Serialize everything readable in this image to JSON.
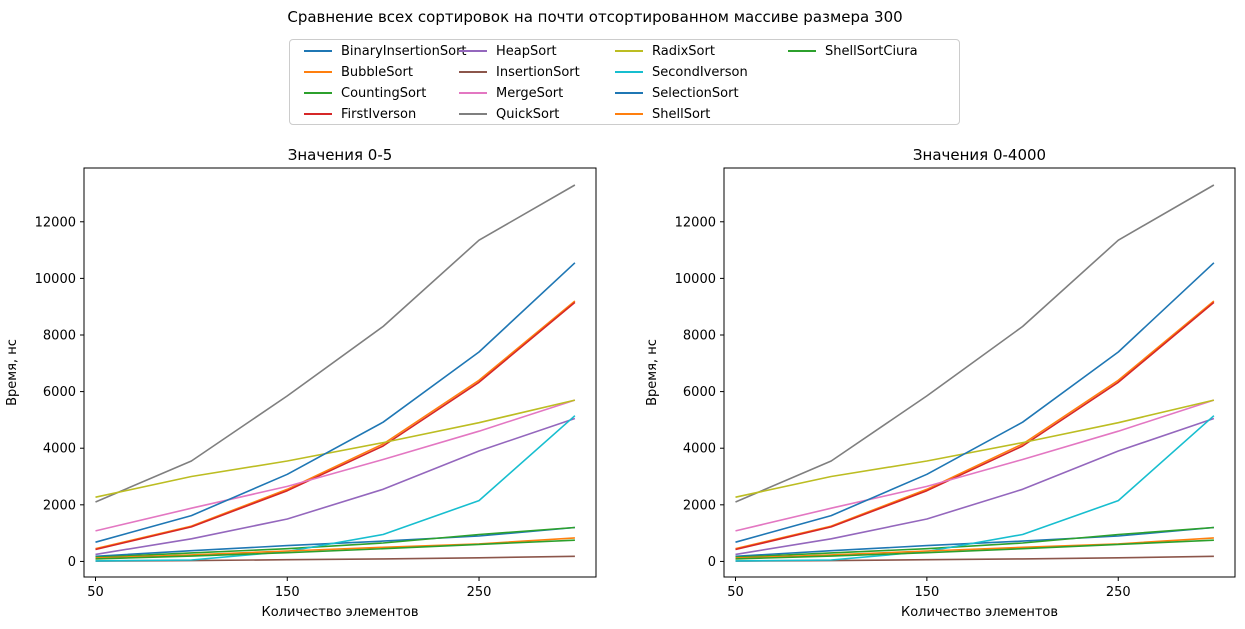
{
  "suptitle": "Сравнение всех сортировок на почти отсортированном массиве размера 300",
  "legend": [
    {
      "name": "BinaryInsertionSort",
      "color": "#1f77b4"
    },
    {
      "name": "BubbleSort",
      "color": "#ff7f0e"
    },
    {
      "name": "CountingSort",
      "color": "#2ca02c"
    },
    {
      "name": "FirstIverson",
      "color": "#d62728"
    },
    {
      "name": "HeapSort",
      "color": "#9467bd"
    },
    {
      "name": "InsertionSort",
      "color": "#8c564b"
    },
    {
      "name": "MergeSort",
      "color": "#e377c2"
    },
    {
      "name": "QuickSort",
      "color": "#7f7f7f"
    },
    {
      "name": "RadixSort",
      "color": "#bcbd22"
    },
    {
      "name": "SecondIverson",
      "color": "#17becf"
    },
    {
      "name": "SelectionSort",
      "color": "#1f77b4"
    },
    {
      "name": "ShellSort",
      "color": "#ff7f0e"
    },
    {
      "name": "ShellSortCiura",
      "color": "#2ca02c"
    }
  ],
  "chart_data": [
    {
      "type": "line",
      "title": "Значения 0-5",
      "xlabel": "Количество элементов",
      "ylabel": "Время, нс",
      "xlim": [
        44,
        311
      ],
      "ylim": [
        -550,
        13900
      ],
      "xticks": [
        50,
        150,
        250
      ],
      "yticks": [
        0,
        2000,
        4000,
        6000,
        8000,
        10000,
        12000
      ],
      "x": [
        50,
        100,
        150,
        200,
        250,
        300
      ],
      "series": [
        {
          "name": "BinaryInsertionSort",
          "color": "#1f77b4",
          "values": [
            180,
            380,
            560,
            720,
            900,
            1200
          ]
        },
        {
          "name": "BubbleSort",
          "color": "#ff7f0e",
          "values": [
            450,
            1250,
            2550,
            4150,
            6400,
            9200
          ]
        },
        {
          "name": "CountingSort",
          "color": "#2ca02c",
          "values": [
            150,
            300,
            450,
            650,
            950,
            1200
          ]
        },
        {
          "name": "FirstIverson",
          "color": "#d62728",
          "values": [
            420,
            1220,
            2500,
            4080,
            6330,
            9150
          ]
        },
        {
          "name": "HeapSort",
          "color": "#9467bd",
          "values": [
            250,
            800,
            1500,
            2550,
            3900,
            5050
          ]
        },
        {
          "name": "InsertionSort",
          "color": "#8c564b",
          "values": [
            10,
            30,
            60,
            90,
            130,
            180
          ]
        },
        {
          "name": "MergeSort",
          "color": "#e377c2",
          "values": [
            1080,
            1880,
            2650,
            3600,
            4600,
            5700
          ]
        },
        {
          "name": "QuickSort",
          "color": "#7f7f7f",
          "values": [
            2100,
            3550,
            5850,
            8300,
            11350,
            13300
          ]
        },
        {
          "name": "RadixSort",
          "color": "#bcbd22",
          "values": [
            2270,
            3000,
            3550,
            4200,
            4900,
            5700
          ]
        },
        {
          "name": "SecondIverson",
          "color": "#17becf",
          "values": [
            20,
            50,
            350,
            950,
            2150,
            5150
          ]
        },
        {
          "name": "SelectionSort",
          "color": "#1f77b4",
          "values": [
            680,
            1620,
            3080,
            4920,
            7400,
            10550
          ]
        },
        {
          "name": "ShellSort",
          "color": "#ff7f0e",
          "values": [
            120,
            230,
            370,
            500,
            620,
            830
          ]
        },
        {
          "name": "ShellSortCiura",
          "color": "#2ca02c",
          "values": [
            90,
            190,
            310,
            450,
            600,
            750
          ]
        }
      ]
    },
    {
      "type": "line",
      "title": "Значения 0-4000",
      "xlabel": "Количество элементов",
      "ylabel": "Время, нс",
      "xlim": [
        44,
        311
      ],
      "ylim": [
        -550,
        13900
      ],
      "xticks": [
        50,
        150,
        250
      ],
      "yticks": [
        0,
        2000,
        4000,
        6000,
        8000,
        10000,
        12000
      ],
      "x": [
        50,
        100,
        150,
        200,
        250,
        300
      ],
      "series": [
        {
          "name": "BinaryInsertionSort",
          "color": "#1f77b4",
          "values": [
            180,
            380,
            560,
            720,
            900,
            1200
          ]
        },
        {
          "name": "BubbleSort",
          "color": "#ff7f0e",
          "values": [
            450,
            1250,
            2550,
            4150,
            6400,
            9200
          ]
        },
        {
          "name": "CountingSort",
          "color": "#2ca02c",
          "values": [
            150,
            300,
            450,
            650,
            950,
            1200
          ]
        },
        {
          "name": "FirstIverson",
          "color": "#d62728",
          "values": [
            420,
            1220,
            2500,
            4080,
            6330,
            9150
          ]
        },
        {
          "name": "HeapSort",
          "color": "#9467bd",
          "values": [
            250,
            800,
            1500,
            2550,
            3900,
            5050
          ]
        },
        {
          "name": "InsertionSort",
          "color": "#8c564b",
          "values": [
            10,
            30,
            60,
            90,
            130,
            180
          ]
        },
        {
          "name": "MergeSort",
          "color": "#e377c2",
          "values": [
            1080,
            1880,
            2650,
            3600,
            4600,
            5700
          ]
        },
        {
          "name": "QuickSort",
          "color": "#7f7f7f",
          "values": [
            2100,
            3550,
            5850,
            8300,
            11350,
            13300
          ]
        },
        {
          "name": "RadixSort",
          "color": "#bcbd22",
          "values": [
            2270,
            3000,
            3550,
            4200,
            4900,
            5700
          ]
        },
        {
          "name": "SecondIverson",
          "color": "#17becf",
          "values": [
            20,
            50,
            350,
            950,
            2150,
            5150
          ]
        },
        {
          "name": "SelectionSort",
          "color": "#1f77b4",
          "values": [
            680,
            1620,
            3080,
            4920,
            7400,
            10550
          ]
        },
        {
          "name": "ShellSort",
          "color": "#ff7f0e",
          "values": [
            120,
            230,
            370,
            500,
            620,
            830
          ]
        },
        {
          "name": "ShellSortCiura",
          "color": "#2ca02c",
          "values": [
            90,
            190,
            310,
            450,
            600,
            750
          ]
        }
      ]
    }
  ]
}
